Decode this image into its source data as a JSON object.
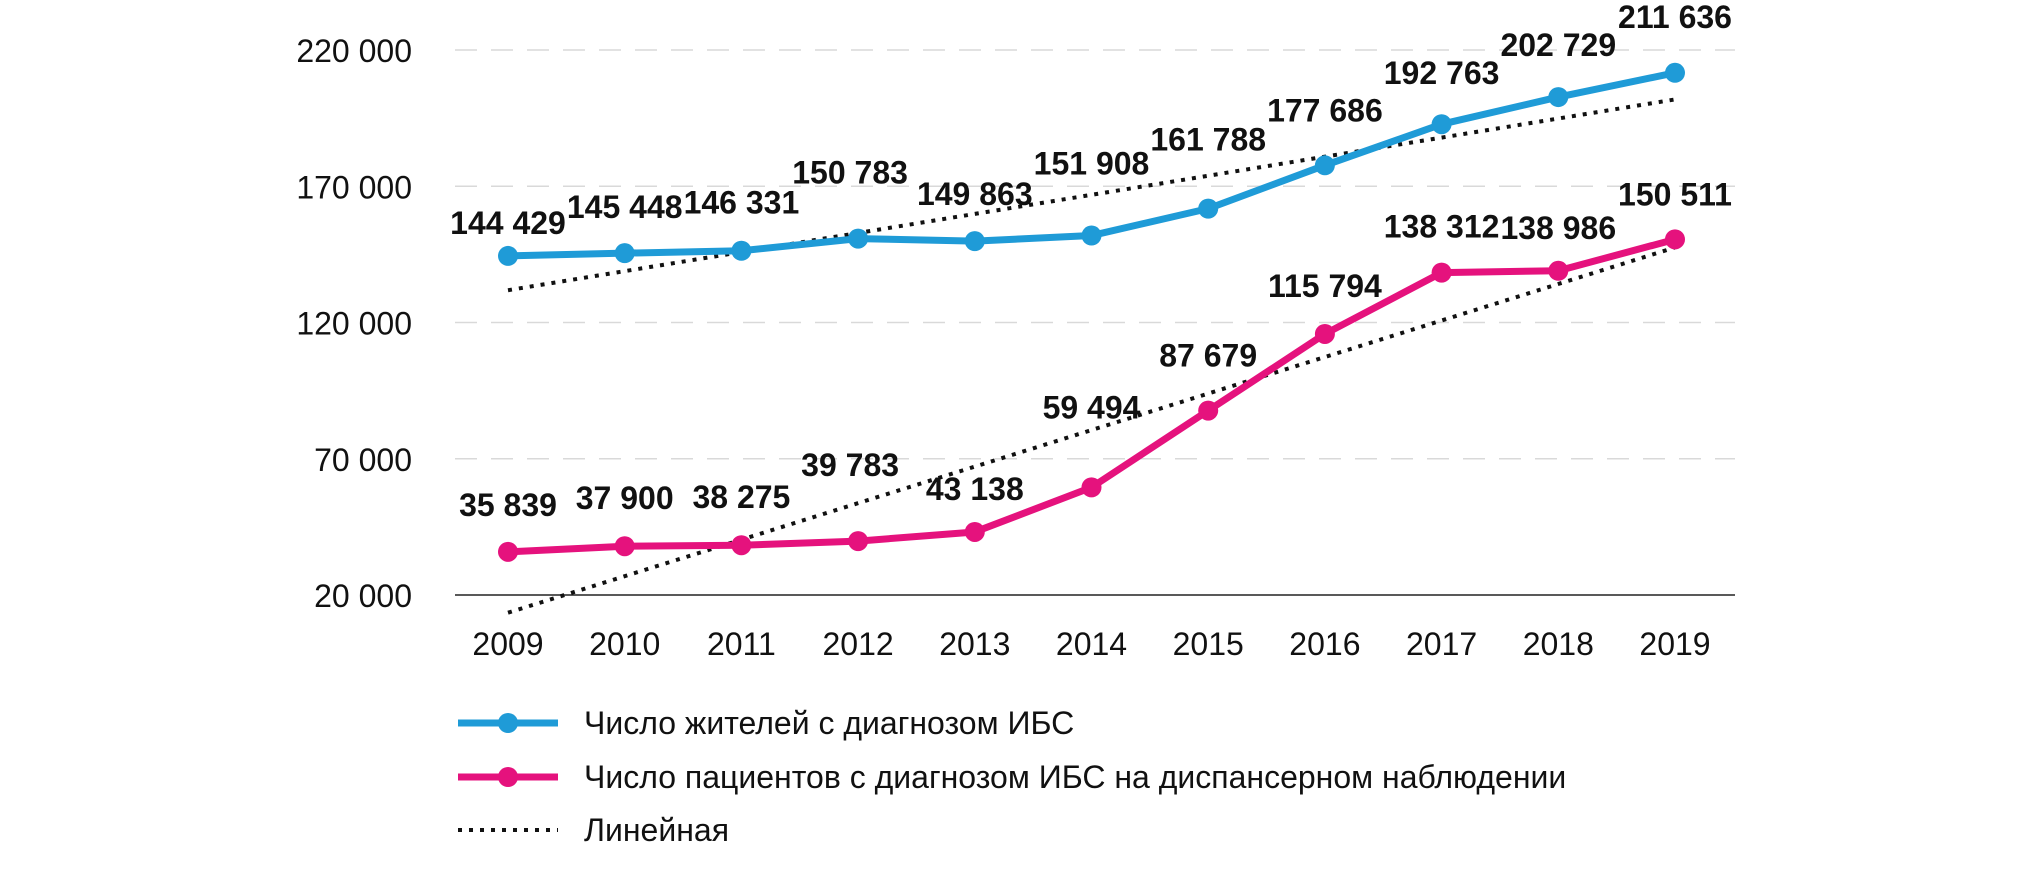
{
  "chart_data": {
    "type": "line",
    "title": "",
    "xlabel": "",
    "ylabel": "",
    "categories": [
      "2009",
      "2010",
      "2011",
      "2012",
      "2013",
      "2014",
      "2015",
      "2016",
      "2017",
      "2018",
      "2019"
    ],
    "ylim": [
      20000,
      220000
    ],
    "yticks": [
      20000,
      70000,
      120000,
      170000,
      220000
    ],
    "ytick_labels": [
      "20 000",
      "70 000",
      "120 000",
      "170 000",
      "220 000"
    ],
    "grid": "horizontal dashed",
    "legend_position": "bottom-left",
    "series": [
      {
        "name": "Число жителей с диагнозом ИБС",
        "color": "#1f9bd7",
        "values": [
          144429,
          145448,
          146331,
          150783,
          149863,
          151908,
          161788,
          177686,
          192763,
          202729,
          211636
        ],
        "labels": [
          "144 429",
          "145 448",
          "146 331",
          "150 783",
          "149 863",
          "151 908",
          "161 788",
          "177 686",
          "192 763",
          "202 729",
          "211 636"
        ]
      },
      {
        "name": "Число пациентов с диагнозом ИБС на диспансерном наблюдении",
        "color": "#e5127d",
        "values": [
          35839,
          37900,
          38275,
          39783,
          43138,
          59494,
          87679,
          115794,
          138312,
          138986,
          150511
        ],
        "labels": [
          "35 839",
          "37 900",
          "38 275",
          "39 783",
          "43 138",
          "59 494",
          "87 679",
          "115 794",
          "138 312",
          "138 986",
          "150 511"
        ]
      }
    ],
    "trendline": {
      "name": "Линейная",
      "style": "dotted",
      "color": "#111111"
    }
  }
}
